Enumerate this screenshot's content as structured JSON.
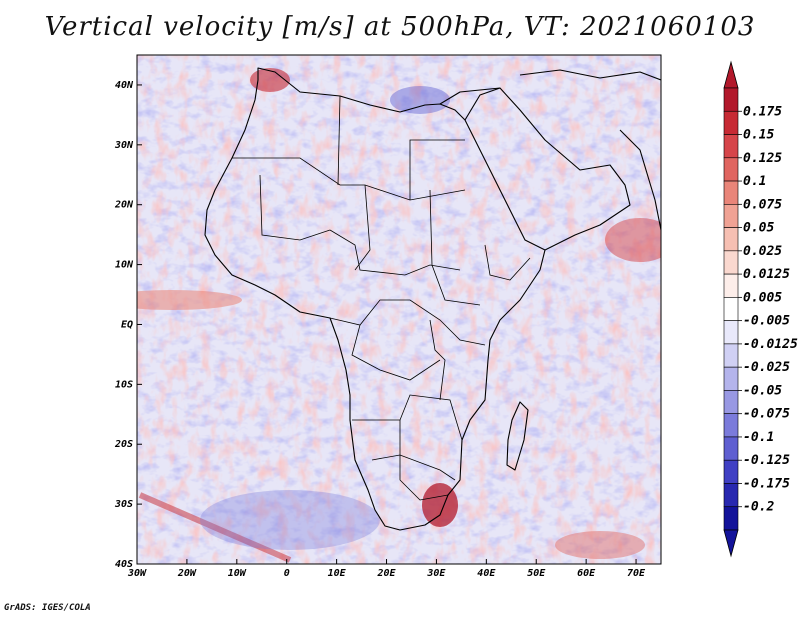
{
  "title": "Vertical velocity [m/s] at 500hPa, VT: 2021060103",
  "credit": "GrADS: IGES/COLA",
  "axes": {
    "lon_labels": [
      "30W",
      "20W",
      "10W",
      "0",
      "10E",
      "20E",
      "30E",
      "40E",
      "50E",
      "60E",
      "70E"
    ],
    "lat_labels": [
      "40N",
      "30N",
      "20N",
      "10N",
      "EQ",
      "10S",
      "20S",
      "30S",
      "40S"
    ]
  },
  "colorbar": {
    "labels": [
      "0.175",
      "0.15",
      "0.125",
      "0.1",
      "0.075",
      "0.05",
      "0.025",
      "0.0125",
      "0.005",
      "-0.005",
      "-0.0125",
      "-0.025",
      "-0.05",
      "-0.075",
      "-0.1",
      "-0.125",
      "-0.175",
      "-0.2"
    ],
    "colors": [
      "#b2182b",
      "#c72a34",
      "#d6454a",
      "#e06560",
      "#e98579",
      "#f0a294",
      "#f6bfb2",
      "#fad8cf",
      "#fdeeea",
      "#ffffff",
      "#e9e9fb",
      "#d0d0f4",
      "#b4b4ec",
      "#9898e3",
      "#7b7bdb",
      "#5f5fd1",
      "#4040c4",
      "#2828b0",
      "#13139a"
    ],
    "top_arrow_color": "#b2182b",
    "bottom_arrow_color": "#13139a"
  },
  "map": {
    "background_color": "#e7e6f7",
    "land_outline_color": "#000000"
  }
}
